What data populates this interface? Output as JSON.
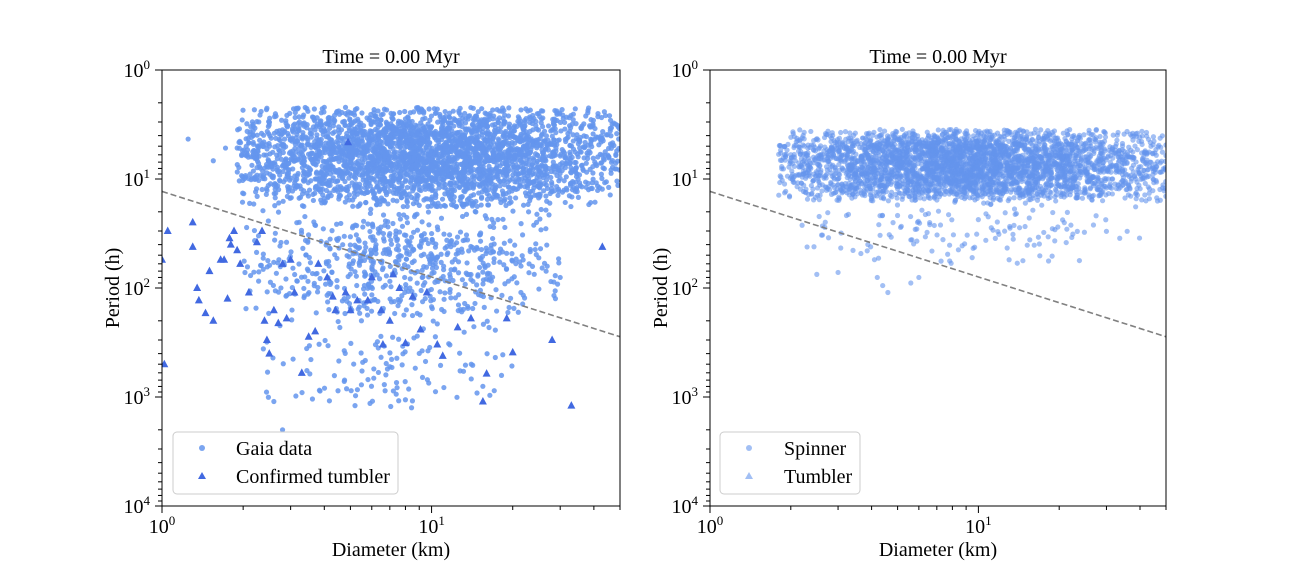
{
  "chart_data": [
    {
      "type": "scatter",
      "title": "Time = 0.00 Myr",
      "xlabel": "Diameter (km)",
      "ylabel": "Period (h)",
      "xscale": "log",
      "yscale": "log",
      "xlim": [
        1,
        50
      ],
      "ylim": [
        10000,
        1
      ],
      "y_inverted": true,
      "x_ticks": [
        {
          "base": "10",
          "exp": "0"
        },
        {
          "base": "10",
          "exp": "1"
        }
      ],
      "y_ticks": [
        {
          "base": "10",
          "exp": "0"
        },
        {
          "base": "10",
          "exp": "1"
        },
        {
          "base": "10",
          "exp": "2"
        },
        {
          "base": "10",
          "exp": "3"
        },
        {
          "base": "10",
          "exp": "4"
        }
      ],
      "grid": false,
      "legend_position": "lower-left",
      "reference_line": {
        "style": "dashed",
        "color": "#808080",
        "points": [
          [
            1,
            13
          ],
          [
            50,
            280
          ]
        ]
      },
      "series": [
        {
          "name": "Gaia data",
          "marker": "circle",
          "color": "#6495ED",
          "opacity": 0.85,
          "clusters": [
            {
              "x_range": [
                1.9,
                50
              ],
              "y_range": [
                2.2,
                18
              ],
              "count": 3200
            },
            {
              "x_range": [
                2.0,
                30
              ],
              "y_range": [
                18,
                180
              ],
              "count": 650
            },
            {
              "x_range": [
                2.3,
                20
              ],
              "y_range": [
                180,
                1300
              ],
              "count": 130
            }
          ],
          "points": [
            [
              1.25,
              4.3
            ],
            [
              1.55,
              6.8
            ],
            [
              1.72,
              5.2
            ],
            [
              2.8,
              2000
            ],
            [
              4.0,
              2.2
            ],
            [
              2.6,
              1100
            ],
            [
              5.2,
              1200
            ],
            [
              30,
              80
            ],
            [
              42,
              12
            ],
            [
              46,
              14
            ]
          ]
        },
        {
          "name": "Confirmed tumbler",
          "marker": "triangle",
          "color": "#4169E1",
          "opacity": 1,
          "points": [
            [
              1.05,
              30
            ],
            [
              1.0,
              55
            ],
            [
              1.02,
              500
            ],
            [
              1.3,
              25
            ],
            [
              1.3,
              42
            ],
            [
              1.35,
              100
            ],
            [
              1.37,
              130
            ],
            [
              1.45,
              170
            ],
            [
              1.5,
              70
            ],
            [
              1.55,
              200
            ],
            [
              1.65,
              55
            ],
            [
              1.7,
              55
            ],
            [
              1.75,
              125
            ],
            [
              1.78,
              35
            ],
            [
              1.8,
              40
            ],
            [
              1.85,
              30
            ],
            [
              1.9,
              45
            ],
            [
              1.95,
              60
            ],
            [
              2.1,
              110
            ],
            [
              2.25,
              38
            ],
            [
              2.35,
              30
            ],
            [
              2.4,
              200
            ],
            [
              2.45,
              300
            ],
            [
              2.5,
              400
            ],
            [
              2.6,
              160
            ],
            [
              2.7,
              210
            ],
            [
              2.8,
              60
            ],
            [
              2.9,
              190
            ],
            [
              3.0,
              55
            ],
            [
              3.1,
              110
            ],
            [
              3.3,
              600
            ],
            [
              3.5,
              280
            ],
            [
              3.7,
              250
            ],
            [
              3.8,
              60
            ],
            [
              4.1,
              80
            ],
            [
              4.3,
              120
            ],
            [
              4.4,
              160
            ],
            [
              4.8,
              110
            ],
            [
              4.9,
              4.6
            ],
            [
              5.0,
              160
            ],
            [
              5.3,
              130
            ],
            [
              5.8,
              130
            ],
            [
              6.0,
              80
            ],
            [
              6.5,
              160
            ],
            [
              6.6,
              330
            ],
            [
              7.0,
              200
            ],
            [
              7.2,
              75
            ],
            [
              7.6,
              100
            ],
            [
              8.0,
              320
            ],
            [
              8.5,
              120
            ],
            [
              9.1,
              240
            ],
            [
              9.6,
              110
            ],
            [
              10.5,
              330
            ],
            [
              11.0,
              420
            ],
            [
              12.5,
              230
            ],
            [
              14.0,
              190
            ],
            [
              15.5,
              1100
            ],
            [
              16.0,
              610
            ],
            [
              19.0,
              190
            ],
            [
              20.0,
              390
            ],
            [
              28.0,
              300
            ],
            [
              33.0,
              1200
            ],
            [
              43.0,
              42
            ]
          ]
        }
      ]
    },
    {
      "type": "scatter",
      "title": "Time = 0.00 Myr",
      "xlabel": "Diameter (km)",
      "ylabel": "Period (h)",
      "xscale": "log",
      "yscale": "log",
      "xlim": [
        1,
        50
      ],
      "ylim": [
        10000,
        1
      ],
      "y_inverted": true,
      "x_ticks": [
        {
          "base": "10",
          "exp": "0"
        },
        {
          "base": "10",
          "exp": "1"
        }
      ],
      "y_ticks": [
        {
          "base": "10",
          "exp": "0"
        },
        {
          "base": "10",
          "exp": "1"
        },
        {
          "base": "10",
          "exp": "2"
        },
        {
          "base": "10",
          "exp": "3"
        },
        {
          "base": "10",
          "exp": "4"
        }
      ],
      "grid": false,
      "legend_position": "lower-left",
      "reference_line": {
        "style": "dashed",
        "color": "#808080",
        "points": [
          [
            1,
            13
          ],
          [
            50,
            280
          ]
        ]
      },
      "series": [
        {
          "name": "Spinner",
          "marker": "circle",
          "color": "#6495ED",
          "opacity": 0.6,
          "clusters": [
            {
              "x_range": [
                1.8,
                50
              ],
              "y_range": [
                3.5,
                16
              ],
              "count": 3600
            },
            {
              "x_range": [
                2.2,
                40
              ],
              "y_range": [
                16,
                60
              ],
              "count": 140
            }
          ],
          "points": [
            [
              2.5,
              75
            ],
            [
              4.1,
              55
            ],
            [
              4.2,
              80
            ],
            [
              4.4,
              95
            ],
            [
              4.6,
              110
            ],
            [
              5.6,
              90
            ],
            [
              6.0,
              80
            ],
            [
              3.0,
              72
            ],
            [
              2.3,
              42
            ]
          ]
        },
        {
          "name": "Tumbler",
          "marker": "triangle",
          "color": "#6495ED",
          "opacity": 0.6,
          "points": []
        }
      ]
    }
  ]
}
